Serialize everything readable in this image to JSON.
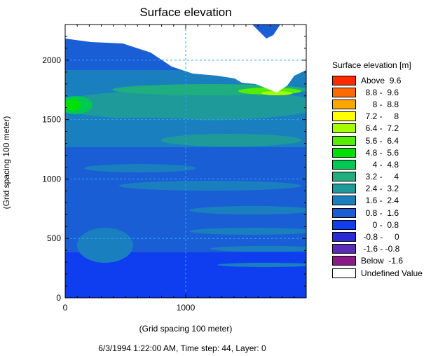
{
  "chart_data": {
    "type": "heatmap",
    "title": "Surface elevation",
    "xlabel": "(Grid spacing 100 meter)",
    "ylabel": "(Grid spacing 100 meter)",
    "caption": "6/3/1994 1:22:00 AM, Time step: 44, Layer: 0",
    "xlim": [
      0,
      2000
    ],
    "ylim": [
      0,
      2300
    ],
    "x_ticks": [
      {
        "value": 0,
        "label": "0"
      },
      {
        "value": 1000,
        "label": "1000"
      }
    ],
    "y_ticks": [
      {
        "value": 0,
        "label": "0"
      },
      {
        "value": 500,
        "label": "500"
      },
      {
        "value": 1000,
        "label": "1000"
      },
      {
        "value": 1500,
        "label": "1500"
      },
      {
        "value": 2000,
        "label": "2000"
      }
    ],
    "grid": true,
    "legend_position": "right",
    "legend_title": "Surface elevation [m]",
    "legend": [
      {
        "label": "Above  9.6",
        "color": "#ff2a00"
      },
      {
        "label": "  8.8 -  9.6",
        "color": "#ff6a00"
      },
      {
        "label": "     8 -  8.8",
        "color": "#ffa600"
      },
      {
        "label": "  7.2 -     8",
        "color": "#ffff00"
      },
      {
        "label": "  6.4 -  7.2",
        "color": "#a6ff00"
      },
      {
        "label": "  5.6 -  6.4",
        "color": "#55ee00"
      },
      {
        "label": "  4.8 -  5.6",
        "color": "#00e000"
      },
      {
        "label": "     4 -  4.8",
        "color": "#00c853"
      },
      {
        "label": "  3.2 -     4",
        "color": "#1fae7e"
      },
      {
        "label": "  2.4 -  3.2",
        "color": "#1f9a9a"
      },
      {
        "label": "  1.6 -  2.4",
        "color": "#1a7fbf"
      },
      {
        "label": "  0.8 -  1.6",
        "color": "#1a5ed6"
      },
      {
        "label": "     0 -  0.8",
        "color": "#0f3ef0"
      },
      {
        "label": " -0.8 -     0",
        "color": "#2a2ad6"
      },
      {
        "label": " -1.6 - -0.8",
        "color": "#5b2ab8"
      },
      {
        "label": "Below  -1.6",
        "color": "#8a1a8a"
      },
      {
        "label": "Undefined Value",
        "color": "#ffffff"
      }
    ]
  }
}
